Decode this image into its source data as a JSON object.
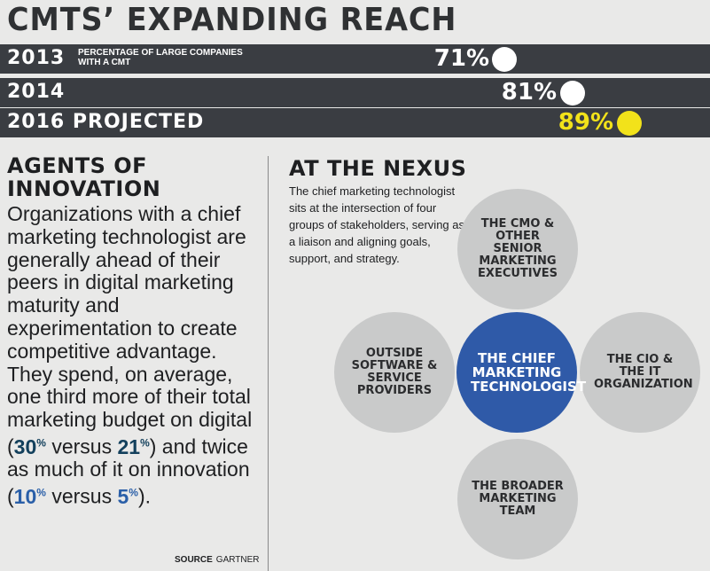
{
  "title": "CMTS’ EXPANDING REACH",
  "rows": [
    {
      "year": "2013",
      "note": "PERCENTAGE OF LARGE COMPANIES WITH A CMT",
      "pct": "71%",
      "dot_color": "#ffffff",
      "text_color": "#ffffff"
    },
    {
      "year": "2014",
      "note": "",
      "pct": "81%",
      "dot_color": "#ffffff",
      "text_color": "#ffffff"
    },
    {
      "year": "2016 PROJECTED",
      "note": "",
      "pct": "89%",
      "dot_color": "#f2e21a",
      "text_color": "#f2e21a"
    }
  ],
  "left": {
    "heading_line1": "AGENTS OF",
    "heading_line2": "INNOVATION",
    "body_part1": "Organizations with a chief marketing technologist are generally ahead of their peers in digital marketing maturity and experimentation to create competitive advantage. They spend, on average, one third more of their total marketing budget on digital (",
    "stat1": "30",
    "versus1": " versus ",
    "stat2": "21",
    "body_part2": ") and twice as much of it on innovation (",
    "stat3": "10",
    "versus2": " versus ",
    "stat4": "5",
    "body_end": ").",
    "pct_sign": "%",
    "source_label": "SOURCE",
    "source_value": "GARTNER"
  },
  "right": {
    "heading": "AT THE NEXUS",
    "body": "The chief marketing technologist sits at the intersection of four groups of stakeholders, serving as a liaison and aligning goals, support, and strategy.",
    "circles": {
      "top": "THE CMO & OTHER SENIOR MARKETING EXECUTIVES",
      "left": "OUTSIDE SOFTWARE & SERVICE PROVIDERS",
      "center": "THE CHIEF MARKETING TECHNOLOGIST",
      "right": "THE CIO & THE IT ORGANIZATION",
      "bottom": "THE BROADER MARKETING TEAM"
    }
  },
  "colors": {
    "bar": "#3a3d42",
    "center_circle": "#2f5aa8",
    "outer_circle": "#c9caca",
    "highlight": "#f2e21a"
  }
}
